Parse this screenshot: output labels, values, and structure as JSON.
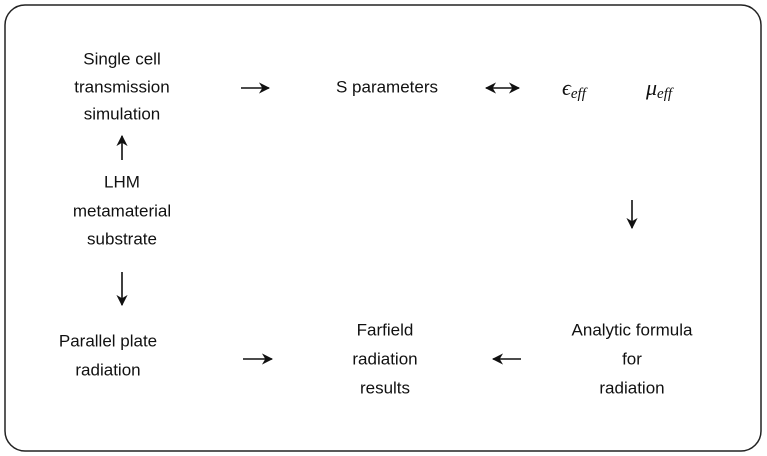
{
  "nodes": [
    {
      "lines": [
        "Single cell",
        "transmission",
        "simulation"
      ]
    },
    {
      "lines": [
        "S parameters"
      ]
    },
    {
      "math": [
        {
          "base": "ϵ",
          "sub": "eff"
        },
        {
          "base": "μ",
          "sub": "eff"
        }
      ]
    },
    {
      "lines": [
        "LHM",
        "metamaterial",
        "substrate"
      ]
    },
    {
      "lines": [
        "Parallel plate",
        "radiation"
      ]
    },
    {
      "lines": [
        "Farfield",
        "radiation",
        "results"
      ]
    },
    {
      "lines": [
        "Analytic formula",
        "for",
        "radiation"
      ]
    }
  ]
}
